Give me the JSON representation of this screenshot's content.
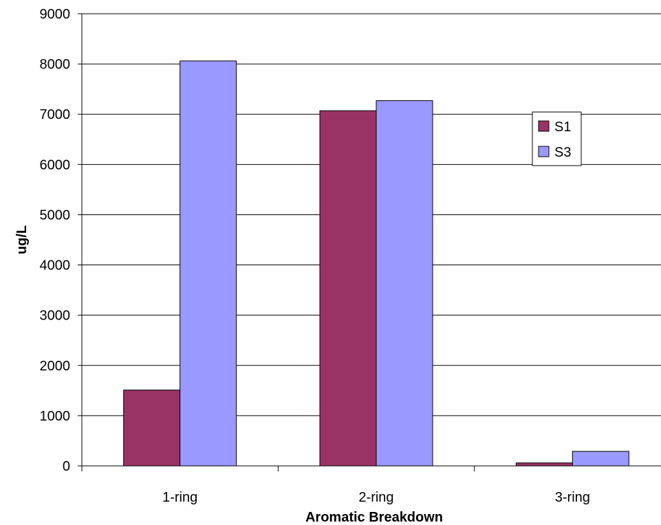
{
  "chart_data": {
    "type": "bar",
    "title": "",
    "xlabel": "Aromatic Breakdown",
    "ylabel": "ug/L",
    "categories": [
      "1-ring",
      "2-ring",
      "3-ring"
    ],
    "series": [
      {
        "name": "S1",
        "values": [
          1510,
          7070,
          60
        ],
        "color": "#993366"
      },
      {
        "name": "S3",
        "values": [
          8060,
          7270,
          290
        ],
        "color": "#9999ff"
      }
    ],
    "ylim": [
      0,
      9000
    ],
    "yticks": [
      0,
      1000,
      2000,
      3000,
      4000,
      5000,
      6000,
      7000,
      8000,
      9000
    ],
    "grid": true,
    "legend_position": "right"
  }
}
